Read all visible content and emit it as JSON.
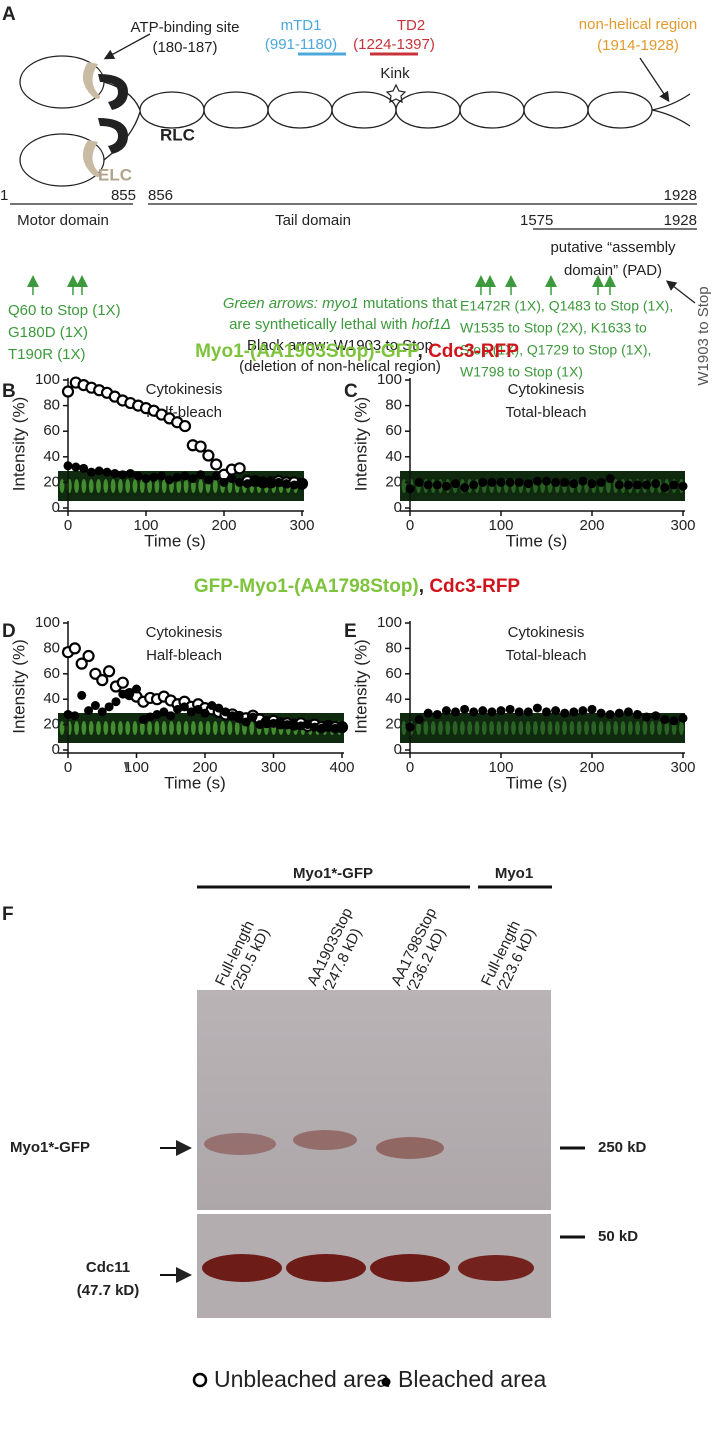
{
  "panel_a": {
    "label": "A",
    "atp": [
      "ATP-binding site",
      "(180-187)"
    ],
    "mtd1": [
      "mTD1",
      "(991-1180)"
    ],
    "td2": [
      "TD2",
      "(1224-1397)"
    ],
    "kink": "Kink",
    "nonhelical": [
      "non-helical region",
      "(1914-1928)"
    ],
    "rlc": "RLC",
    "elc": "ELC",
    "positions": [
      "1",
      "855",
      "856",
      "1928"
    ],
    "motor": "Motor domain",
    "tail": "Tail domain",
    "pad_positions": [
      "1575",
      "1928"
    ],
    "pad": [
      "putative  “assembly",
      "domain” (PAD)"
    ],
    "left_mutations": [
      "Q60 to Stop (1X)",
      "G180D (1X)",
      "T190R (1X)"
    ],
    "legend_lines": [
      [
        "Green arrows: ",
        "myo1",
        " mutations that"
      ],
      [
        "are synthetically lethal with ",
        "hof1Δ"
      ],
      [
        "Black arrow: W1903 to Stop"
      ],
      [
        "(deletion of non-helical region)"
      ]
    ],
    "right_mutations": [
      "E1472R (1X), Q1483 to Stop (1X),",
      "W1535 to Stop (2X), K1633 to",
      "Stop (1X), Q1729 to Stop (1X),",
      "W1798 to Stop (1X)"
    ],
    "w1903": "W1903 to Stop"
  },
  "section_titles": [
    [
      "Myo1-(AA1903Stop)-GFP",
      ", ",
      "Cdc3-RFP"
    ],
    [
      "GFP-Myo1-(AA1798Stop)",
      ", ",
      "Cdc3-RFP"
    ]
  ],
  "chart_data": [
    {
      "type": "scatter",
      "label": "B",
      "title": [
        "Cytokinesis",
        "Half-bleach"
      ],
      "xlabel": "Time  (s)",
      "ylabel": "Intensity  (%)",
      "xlim": [
        0,
        300
      ],
      "ylim": [
        0,
        100
      ],
      "xticks": [
        0,
        100,
        200,
        300
      ],
      "yticks": [
        0,
        20,
        40,
        60,
        80,
        100
      ],
      "x": [
        0,
        10,
        20,
        30,
        40,
        50,
        60,
        70,
        80,
        90,
        100,
        110,
        120,
        130,
        140,
        150,
        160,
        170,
        180,
        190,
        200,
        210,
        220,
        230,
        240,
        250,
        260,
        270,
        280,
        290,
        300
      ],
      "series": [
        {
          "marker": "open",
          "color": "#000000",
          "values": [
            91,
            98,
            96,
            94,
            92,
            90,
            87,
            84,
            82,
            80,
            78,
            76,
            73,
            70,
            67,
            64,
            49,
            48,
            41,
            34,
            26,
            30,
            31,
            21,
            21,
            20,
            20,
            21,
            20,
            20,
            19
          ]
        },
        {
          "marker": "filled",
          "color": "#000000",
          "values": [
            33,
            32,
            31,
            28,
            29,
            28,
            27,
            26,
            27,
            25,
            23,
            24,
            25,
            22,
            24,
            25,
            23,
            26,
            22,
            25,
            20,
            23,
            20,
            19,
            21,
            20,
            20,
            20,
            19,
            18,
            19
          ]
        }
      ]
    },
    {
      "type": "scatter",
      "label": "C",
      "title": [
        "Cytokinesis",
        "Total-bleach"
      ],
      "xlabel": "Time  (s)",
      "ylabel": "Intensity  (%)",
      "xlim": [
        0,
        300
      ],
      "ylim": [
        0,
        100
      ],
      "xticks": [
        0,
        100,
        200,
        300
      ],
      "yticks": [
        0,
        20,
        40,
        60,
        80,
        100
      ],
      "x": [
        0,
        10,
        20,
        30,
        40,
        50,
        60,
        70,
        80,
        90,
        100,
        110,
        120,
        130,
        140,
        150,
        160,
        170,
        180,
        190,
        200,
        210,
        220,
        230,
        240,
        250,
        260,
        270,
        280,
        290,
        300
      ],
      "series": [
        {
          "marker": "filled",
          "color": "#000000",
          "values": [
            15,
            20,
            18,
            18,
            17,
            19,
            16,
            18,
            20,
            20,
            20,
            20,
            20,
            19,
            21,
            21,
            20,
            20,
            19,
            21,
            19,
            20,
            23,
            18,
            18,
            18,
            18,
            19,
            16,
            18,
            17
          ]
        }
      ]
    },
    {
      "type": "scatter",
      "label": "D",
      "title": [
        "Cytokinesis",
        "Half-bleach"
      ],
      "xlabel": "Time  (s)",
      "ylabel": "Intensity  (%)",
      "xlim": [
        0,
        400
      ],
      "ylim": [
        0,
        100
      ],
      "xticks": [
        0,
        100,
        200,
        300,
        400
      ],
      "yticks": [
        0,
        20,
        40,
        60,
        80,
        100
      ],
      "x": [
        0,
        10,
        20,
        30,
        40,
        50,
        60,
        70,
        80,
        90,
        100,
        110,
        120,
        130,
        140,
        150,
        160,
        170,
        180,
        190,
        200,
        210,
        220,
        230,
        240,
        250,
        260,
        270,
        280,
        290,
        300,
        310,
        320,
        330,
        340,
        350,
        360,
        370,
        380,
        390,
        400
      ],
      "series": [
        {
          "marker": "open",
          "color": "#000000",
          "values": [
            77,
            80,
            68,
            74,
            60,
            55,
            62,
            50,
            53,
            44,
            42,
            38,
            41,
            40,
            42,
            39,
            36,
            38,
            34,
            36,
            33,
            32,
            30,
            28,
            28,
            26,
            25,
            27,
            24,
            22,
            23,
            21,
            21,
            20,
            21,
            19,
            20,
            18,
            19,
            18,
            18
          ]
        },
        {
          "marker": "filled",
          "color": "#000000",
          "values": [
            28,
            27,
            43,
            31,
            35,
            30,
            34,
            38,
            44,
            44,
            48,
            24,
            26,
            28,
            30,
            27,
            32,
            34,
            30,
            32,
            29,
            35,
            33,
            30,
            27,
            26,
            22,
            26,
            20,
            22,
            21,
            21,
            20,
            20,
            19,
            20,
            18,
            17,
            19,
            17,
            18
          ]
        }
      ]
    },
    {
      "type": "scatter",
      "label": "E",
      "title": [
        "Cytokinesis",
        "Total-bleach"
      ],
      "xlabel": "Time  (s)",
      "ylabel": "Intensity  (%)",
      "xlim": [
        0,
        300
      ],
      "ylim": [
        0,
        100
      ],
      "xticks": [
        0,
        100,
        200,
        300
      ],
      "yticks": [
        0,
        20,
        40,
        60,
        80,
        100
      ],
      "x": [
        0,
        10,
        20,
        30,
        40,
        50,
        60,
        70,
        80,
        90,
        100,
        110,
        120,
        130,
        140,
        150,
        160,
        170,
        180,
        190,
        200,
        210,
        220,
        230,
        240,
        250,
        260,
        270,
        280,
        290,
        300
      ],
      "series": [
        {
          "marker": "filled",
          "color": "#000000",
          "values": [
            18,
            24,
            29,
            28,
            31,
            30,
            32,
            30,
            31,
            30,
            31,
            32,
            30,
            30,
            33,
            30,
            31,
            29,
            30,
            31,
            32,
            29,
            28,
            29,
            30,
            28,
            26,
            27,
            24,
            23,
            25
          ]
        }
      ]
    }
  ],
  "panel_f": {
    "label": "F",
    "groups": [
      "Myo1*-GFP",
      "Myo1"
    ],
    "lanes": [
      [
        "Full-length",
        "(250.5 kD)"
      ],
      [
        "AA1903Stop",
        "(247.8 kD)"
      ],
      [
        "AA1798Stop",
        "(236.2 kD)"
      ],
      [
        "Full-length",
        "(223.6 kD)"
      ]
    ],
    "rows": [
      [
        "Myo1*-GFP"
      ],
      [
        "Cdc11",
        "(47.7 kD)"
      ]
    ],
    "markers": [
      "250 kD",
      "50 kD"
    ]
  },
  "legend": [
    "Unbleached area",
    "Bleached area"
  ]
}
